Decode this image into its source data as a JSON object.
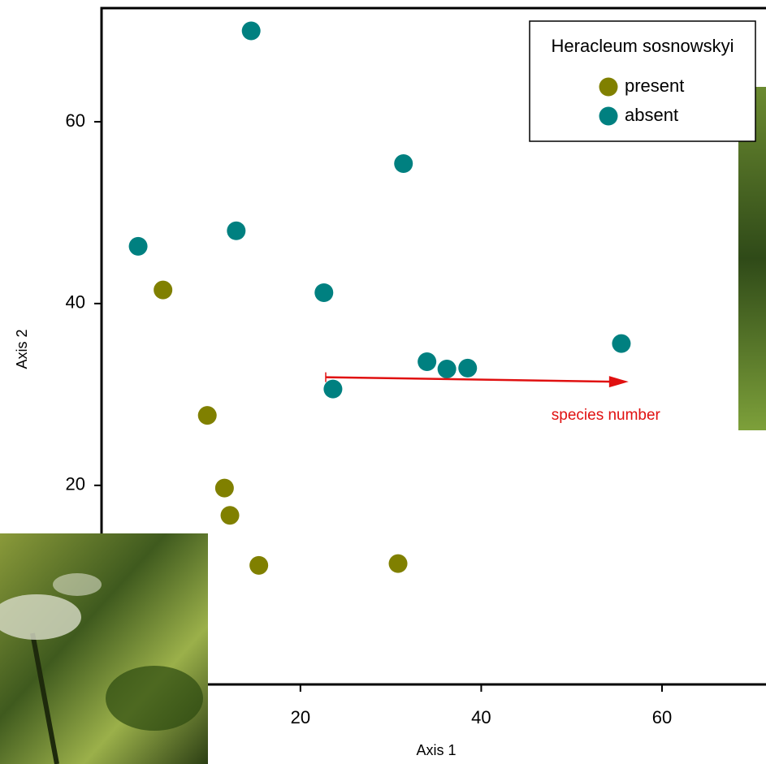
{
  "chart_data": {
    "type": "scatter",
    "x_label": "Axis 1",
    "y_label": "Axis 2",
    "xlim": [
      -2,
      71.5
    ],
    "ylim": [
      -1.9,
      72.5
    ],
    "xticks": [
      20,
      40,
      60
    ],
    "yticks": [
      20,
      40,
      60
    ],
    "legend_title": "Heracleum sosnowskyi",
    "legend": "upper right",
    "series": [
      {
        "name": "present",
        "color": "#808000",
        "x": [
          4.8,
          9.7,
          11.6,
          12.2,
          15.4,
          30.8
        ],
        "values": [
          41.5,
          27.7,
          19.7,
          16.7,
          11.2,
          11.4
        ]
      },
      {
        "name": "absent",
        "color": "#008080",
        "x": [
          14.55,
          2.05,
          12.9,
          31.4,
          22.6,
          23.6,
          34.0,
          36.2,
          38.5,
          55.5
        ],
        "values": [
          70,
          46.3,
          48.0,
          55.4,
          41.2,
          30.6,
          33.6,
          32.8,
          32.9,
          35.6
        ]
      }
    ],
    "arrow": {
      "label": "species number",
      "color": "#e01010",
      "x": [
        22.8,
        56.3
      ],
      "y": [
        31.9,
        31.4
      ]
    }
  }
}
